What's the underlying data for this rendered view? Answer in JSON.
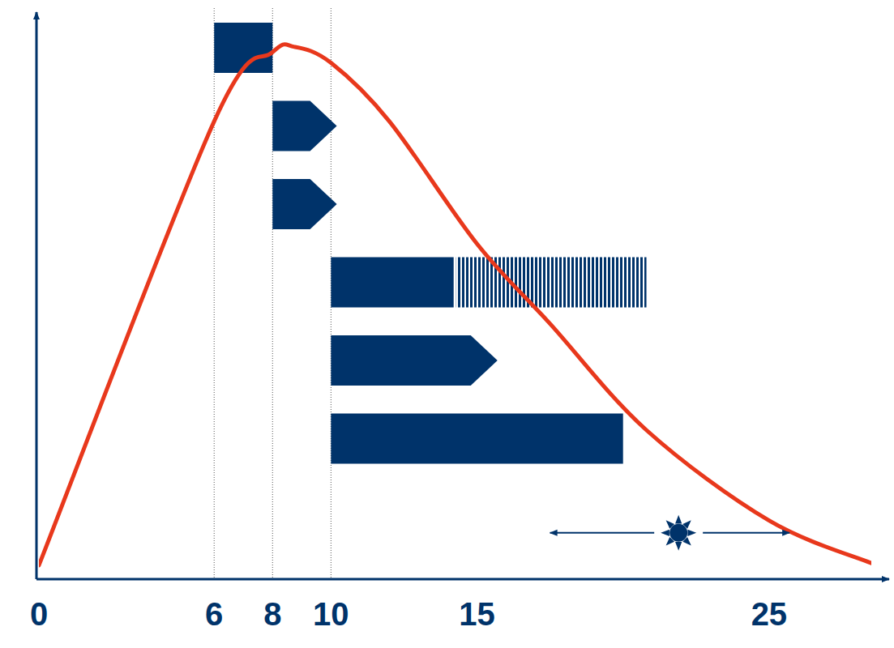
{
  "chart_data": {
    "type": "timeline",
    "color": "#00336a",
    "xlim": [
      0,
      28.5
    ],
    "xticks": [
      0,
      6,
      8,
      10,
      15,
      25
    ],
    "ylim": [
      0,
      105
    ],
    "tick_labels": "x",
    "guides": [
      6,
      8,
      10
    ],
    "series": [
      {
        "type": "line",
        "color": "#e8381c",
        "x": [
          0,
          6,
          8,
          8.75,
          10,
          12,
          15,
          17.5,
          20.8,
          25,
          28.5
        ],
        "values": [
          2.6,
          86,
          99,
          100,
          97,
          86,
          63,
          48,
          28,
          11,
          3
        ]
      },
      {
        "type": "range",
        "marker": "block",
        "start": 6,
        "end": 8
      },
      {
        "type": "range",
        "marker": "arrow",
        "start": 8,
        "end": 10.2
      },
      {
        "type": "range",
        "marker": "arrow",
        "start": 8,
        "end": 10.2
      },
      {
        "type": "range",
        "marker": "block",
        "start": 10,
        "end": 14.2,
        "extended_end": 20.8,
        "line_style": "hatched"
      },
      {
        "type": "range",
        "marker": "arrow",
        "start": 10,
        "end": 15.7
      },
      {
        "type": "range",
        "marker": "block",
        "start": 10,
        "end": 20
      },
      {
        "type": "marker",
        "marker": "sun",
        "x": 21.9,
        "y": 8.7,
        "range": [
          17.5,
          25.7
        ]
      }
    ]
  }
}
